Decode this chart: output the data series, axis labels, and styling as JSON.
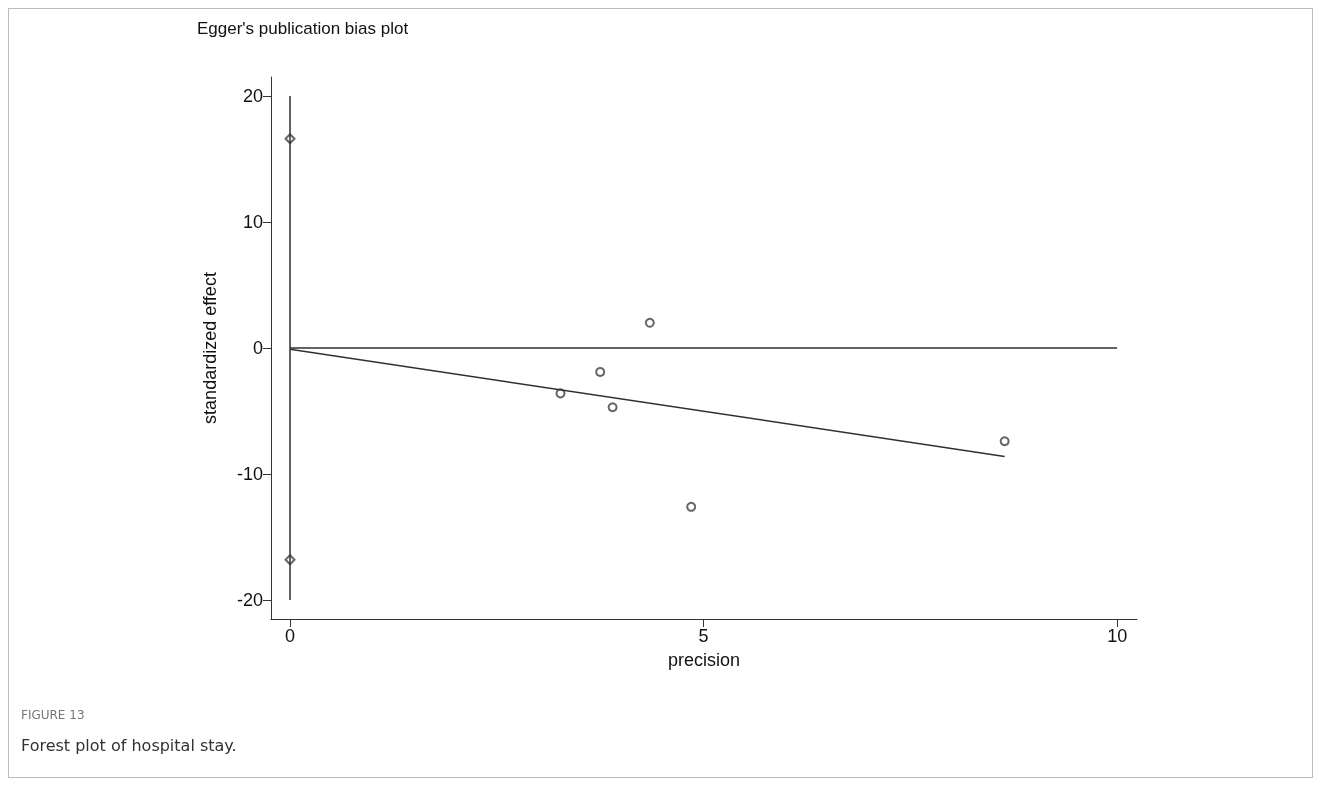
{
  "chart_data": {
    "type": "scatter",
    "title": "Egger's publication bias plot",
    "xlabel": "precision",
    "ylabel": "standardized effect",
    "xlim": [
      -0.23,
      10.24
    ],
    "xticks": [
      0,
      5,
      10
    ],
    "ylim": [
      -21.5,
      21.5
    ],
    "yticks": [
      -20,
      -10,
      0,
      10,
      20
    ],
    "grid": false,
    "series": [
      {
        "marker": "circle",
        "color": "#404040",
        "x": [
          3.27,
          3.75,
          3.9,
          4.35,
          4.85,
          8.64
        ],
        "values": [
          -3.6,
          -1.9,
          -4.7,
          2.0,
          -12.6,
          -7.4
        ]
      },
      {
        "marker": "diamond",
        "color": "#404040",
        "x": [
          0,
          0
        ],
        "values": [
          16.6,
          -16.8
        ]
      },
      {
        "type": "line",
        "marker": "none",
        "color": "#303030",
        "x": [
          0,
          0
        ],
        "values": [
          -20,
          20
        ]
      },
      {
        "type": "line",
        "marker": "none",
        "color": "#303030",
        "x": [
          0,
          10
        ],
        "values": [
          0,
          0
        ]
      },
      {
        "type": "line",
        "marker": "none",
        "color": "#303030",
        "x": [
          0,
          8.64
        ],
        "values": [
          -0.1,
          -8.6
        ]
      }
    ],
    "annotations": [
      "FIGURE 13",
      "Forest plot of hospital stay."
    ]
  }
}
